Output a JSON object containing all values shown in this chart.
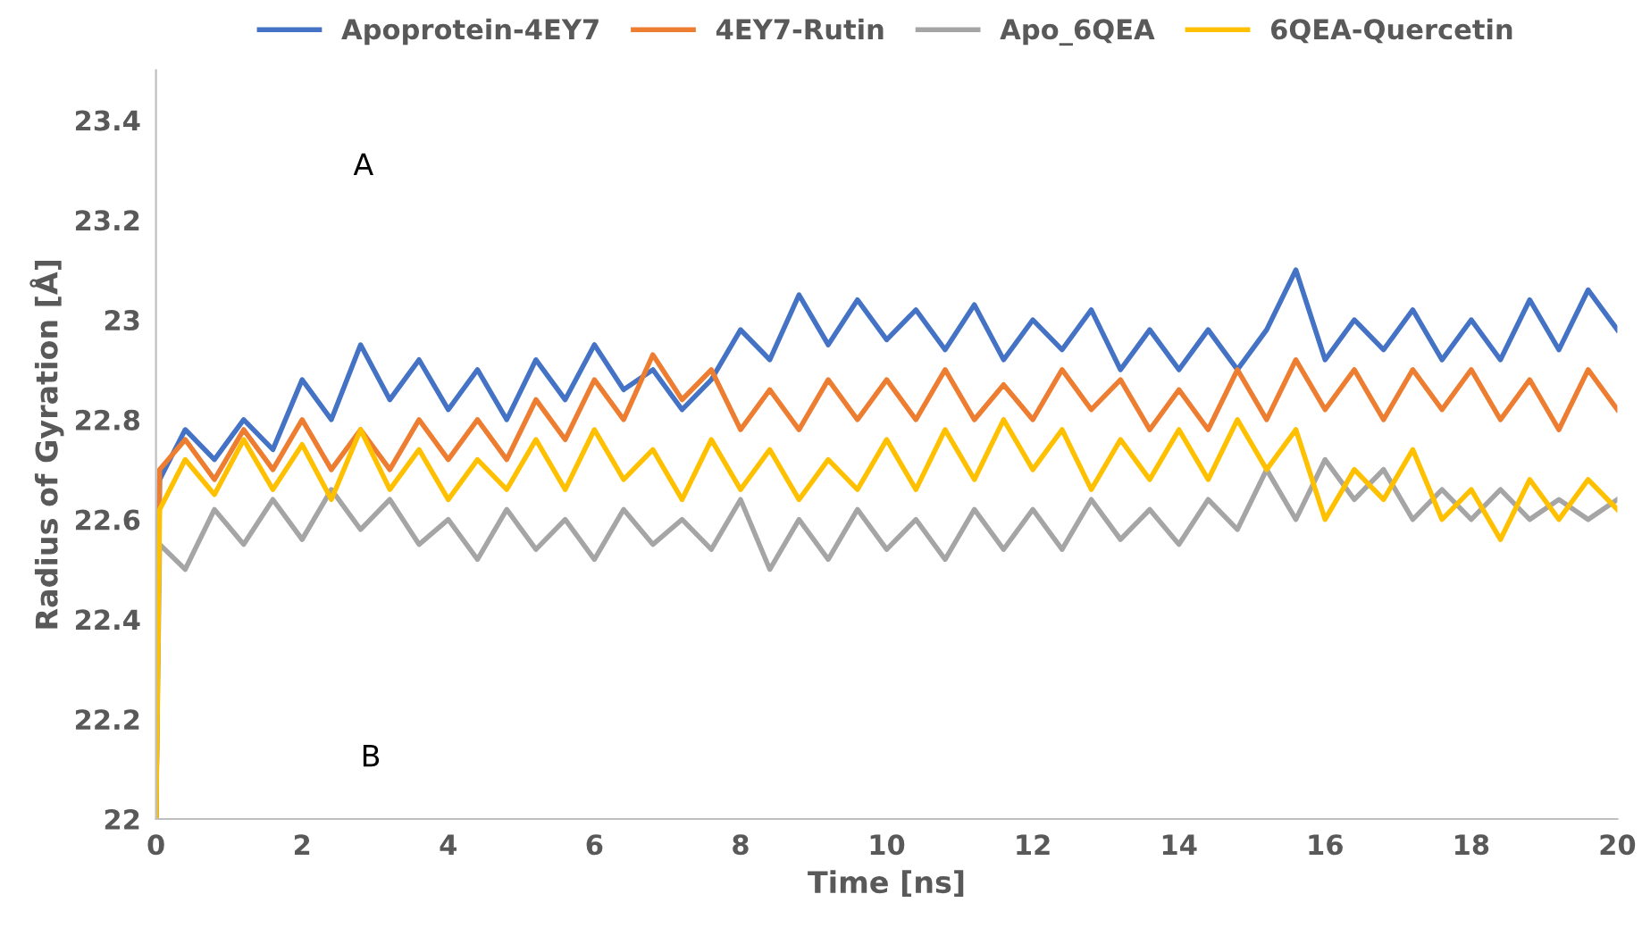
{
  "chart_data": {
    "type": "line",
    "xlabel": "Time [ns]",
    "ylabel": "Radius of Gyration [Å]",
    "x": [
      0,
      0.05,
      0.4,
      0.8,
      1.2,
      1.6,
      2.0,
      2.4,
      2.8,
      3.2,
      3.6,
      4.0,
      4.4,
      4.8,
      5.2,
      5.6,
      6.0,
      6.4,
      6.8,
      7.2,
      7.6,
      8.0,
      8.4,
      8.8,
      9.2,
      9.6,
      10.0,
      10.4,
      10.8,
      11.2,
      11.6,
      12.0,
      12.4,
      12.8,
      13.2,
      13.6,
      14.0,
      14.4,
      14.8,
      15.2,
      15.6,
      16.0,
      16.4,
      16.8,
      17.2,
      17.6,
      18.0,
      18.4,
      18.8,
      19.2,
      19.6,
      20.0
    ],
    "series": [
      {
        "name": "Apoprotein-4EY7",
        "color": "#4472c4",
        "values": [
          22.0,
          22.68,
          22.78,
          22.72,
          22.8,
          22.74,
          22.88,
          22.8,
          22.95,
          22.84,
          22.92,
          22.82,
          22.9,
          22.8,
          22.92,
          22.84,
          22.95,
          22.86,
          22.9,
          22.82,
          22.88,
          22.98,
          22.92,
          23.05,
          22.95,
          23.04,
          22.96,
          23.02,
          22.94,
          23.03,
          22.92,
          23.0,
          22.94,
          23.02,
          22.9,
          22.98,
          22.9,
          22.98,
          22.9,
          22.98,
          23.1,
          22.92,
          23.0,
          22.94,
          23.02,
          22.92,
          23.0,
          22.92,
          23.04,
          22.94,
          23.06,
          22.98
        ]
      },
      {
        "name": "4EY7-Rutin",
        "color": "#ed7d31",
        "values": [
          22.0,
          22.7,
          22.76,
          22.68,
          22.78,
          22.7,
          22.8,
          22.7,
          22.78,
          22.7,
          22.8,
          22.72,
          22.8,
          22.72,
          22.84,
          22.76,
          22.88,
          22.8,
          22.93,
          22.84,
          22.9,
          22.78,
          22.86,
          22.78,
          22.88,
          22.8,
          22.88,
          22.8,
          22.9,
          22.8,
          22.87,
          22.8,
          22.9,
          22.82,
          22.88,
          22.78,
          22.86,
          22.78,
          22.9,
          22.8,
          22.92,
          22.82,
          22.9,
          22.8,
          22.9,
          22.82,
          22.9,
          22.8,
          22.88,
          22.78,
          22.9,
          22.82
        ]
      },
      {
        "name": "Apo_6QEA",
        "color": "#a5a5a5",
        "values": [
          22.0,
          22.55,
          22.5,
          22.62,
          22.55,
          22.64,
          22.56,
          22.66,
          22.58,
          22.64,
          22.55,
          22.6,
          22.52,
          22.62,
          22.54,
          22.6,
          22.52,
          22.62,
          22.55,
          22.6,
          22.54,
          22.64,
          22.5,
          22.6,
          22.52,
          22.62,
          22.54,
          22.6,
          22.52,
          22.62,
          22.54,
          22.62,
          22.54,
          22.64,
          22.56,
          22.62,
          22.55,
          22.64,
          22.58,
          22.7,
          22.6,
          22.72,
          22.64,
          22.7,
          22.6,
          22.66,
          22.6,
          22.66,
          22.6,
          22.64,
          22.6,
          22.64
        ]
      },
      {
        "name": "6QEA-Quercetin",
        "color": "#ffc000",
        "values": [
          22.0,
          22.62,
          22.72,
          22.65,
          22.76,
          22.66,
          22.75,
          22.64,
          22.78,
          22.66,
          22.74,
          22.64,
          22.72,
          22.66,
          22.76,
          22.66,
          22.78,
          22.68,
          22.74,
          22.64,
          22.76,
          22.66,
          22.74,
          22.64,
          22.72,
          22.66,
          22.76,
          22.66,
          22.78,
          22.68,
          22.8,
          22.7,
          22.78,
          22.66,
          22.76,
          22.68,
          22.78,
          22.68,
          22.8,
          22.7,
          22.78,
          22.6,
          22.7,
          22.64,
          22.74,
          22.6,
          22.66,
          22.56,
          22.68,
          22.6,
          22.68,
          22.62
        ]
      }
    ],
    "xlim": [
      0,
      20
    ],
    "xticks": [
      0,
      2,
      4,
      6,
      8,
      10,
      12,
      14,
      16,
      18,
      20
    ],
    "ylim": [
      22,
      23.5
    ],
    "yticks": [
      22,
      22.2,
      22.4,
      22.6,
      22.8,
      23,
      23.2,
      23.4
    ],
    "grid": false,
    "legend": "top",
    "marker": "none",
    "line_style": "solid",
    "annotations": [
      "A",
      "B"
    ]
  }
}
